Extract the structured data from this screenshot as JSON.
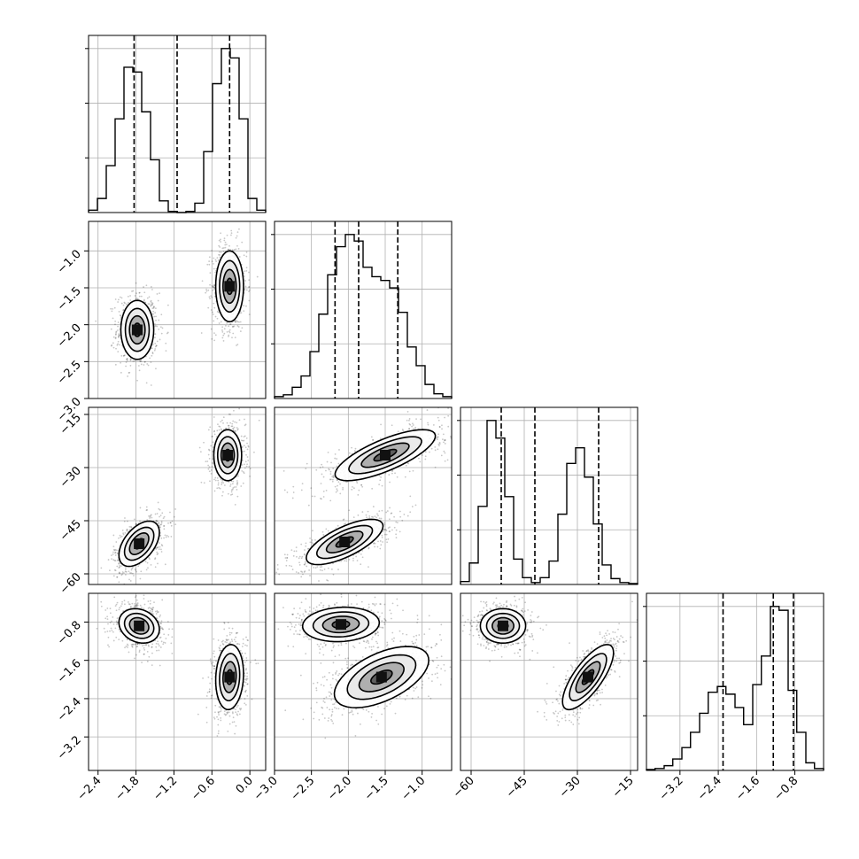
{
  "chart_data": {
    "type": "corner",
    "title": "",
    "parameters": [
      {
        "range": [
          -2.55,
          0.25
        ],
        "ticks": [
          -2.4,
          -1.8,
          -1.2,
          -0.6,
          0.0
        ],
        "tick_labels": [
          "−2.4",
          "−1.8",
          "−1.2",
          "−0.6",
          "0.0"
        ]
      },
      {
        "range": [
          -3.0,
          -0.6
        ],
        "ticks": [
          -3.0,
          -2.5,
          -2.0,
          -1.5,
          -1.0
        ],
        "tick_labels": [
          "−3.0",
          "−2.5",
          "−2.0",
          "−1.5",
          "−1.0"
        ]
      },
      {
        "range": [
          -63,
          -13
        ],
        "ticks": [
          -60,
          -45,
          -30,
          -15
        ],
        "tick_labels": [
          "−60",
          "−45",
          "−30",
          "−15"
        ]
      },
      {
        "range": [
          -3.9,
          -0.2
        ],
        "ticks": [
          -3.2,
          -2.4,
          -1.6,
          -0.8
        ],
        "tick_labels": [
          "−3.2",
          "−2.4",
          "−1.6",
          "−0.8"
        ]
      }
    ],
    "diagonal_histograms": [
      {
        "bins": [
          -2.55,
          -2.41,
          -2.27,
          -2.13,
          -1.99,
          -1.85,
          -1.71,
          -1.57,
          -1.43,
          -1.29,
          -1.15,
          -1.01,
          -0.87,
          -0.73,
          -0.59,
          -0.45,
          -0.31,
          -0.17,
          -0.03,
          0.11,
          0.25
        ],
        "counts": [
          2,
          12,
          40,
          80,
          124,
          120,
          86,
          45,
          10,
          1,
          0,
          1,
          8,
          52,
          110,
          140,
          132,
          80,
          12,
          2
        ],
        "quantiles": [
          -1.83,
          -1.15,
          -0.32
        ]
      },
      {
        "bins": [
          -3.0,
          -2.88,
          -2.76,
          -2.64,
          -2.52,
          -2.4,
          -2.28,
          -2.16,
          -2.04,
          -1.92,
          -1.8,
          -1.68,
          -1.56,
          -1.44,
          -1.32,
          -1.2,
          -1.08,
          -0.96,
          -0.84,
          -0.72,
          -0.6
        ],
        "counts": [
          2,
          4,
          12,
          24,
          50,
          90,
          132,
          162,
          175,
          168,
          140,
          130,
          126,
          118,
          92,
          55,
          35,
          15,
          5,
          2
        ],
        "quantiles": [
          -2.18,
          -1.86,
          -1.33
        ]
      },
      {
        "bins": [
          -63,
          -60.5,
          -58,
          -55.5,
          -53,
          -50.5,
          -48,
          -45.5,
          -43,
          -40.5,
          -38,
          -35.5,
          -33,
          -30.5,
          -28,
          -25.5,
          -23,
          -20.5,
          -18,
          -15.5,
          -13
        ],
        "counts": [
          3,
          22,
          80,
          168,
          150,
          90,
          26,
          7,
          2,
          7,
          24,
          72,
          124,
          140,
          110,
          62,
          20,
          6,
          2,
          1
        ],
        "quantiles": [
          -51.5,
          -42.0,
          -24.0
        ]
      },
      {
        "bins": [
          -3.9,
          -3.72,
          -3.53,
          -3.35,
          -3.16,
          -2.98,
          -2.79,
          -2.61,
          -2.42,
          -2.24,
          -2.05,
          -1.87,
          -1.68,
          -1.5,
          -1.31,
          -1.13,
          -0.94,
          -0.76,
          -0.57,
          -0.39,
          -0.2
        ],
        "counts": [
          1,
          2,
          5,
          12,
          24,
          40,
          60,
          82,
          88,
          80,
          66,
          48,
          90,
          120,
          172,
          168,
          84,
          40,
          8,
          2
        ],
        "quantiles": [
          -2.3,
          -1.25,
          -0.83
        ]
      }
    ],
    "scatter_panels": [
      {
        "x_param": 0,
        "y_param": 1,
        "clusters": [
          {
            "cx": -1.78,
            "cy": -2.07,
            "sx": 0.13,
            "sy": 0.2,
            "rho": 0.0
          },
          {
            "cx": -0.32,
            "cy": -1.48,
            "sx": 0.11,
            "sy": 0.24,
            "rho": 0.0
          }
        ]
      },
      {
        "x_param": 0,
        "y_param": 2,
        "clusters": [
          {
            "cx": -1.75,
            "cy": -51.5,
            "sx": 0.16,
            "sy": 3.2,
            "rho": 0.5
          },
          {
            "cx": -0.35,
            "cy": -26.5,
            "sx": 0.11,
            "sy": 3.6,
            "rho": 0.0
          }
        ]
      },
      {
        "x_param": 0,
        "y_param": 3,
        "clusters": [
          {
            "cx": -1.75,
            "cy": -0.88,
            "sx": 0.16,
            "sy": 0.18,
            "rho": -0.2
          },
          {
            "cx": -0.32,
            "cy": -1.95,
            "sx": 0.11,
            "sy": 0.34,
            "rho": 0.1
          }
        ]
      },
      {
        "x_param": 1,
        "y_param": 2,
        "clusters": [
          {
            "cx": -1.5,
            "cy": -26.5,
            "sx": 0.34,
            "sy": 3.6,
            "rho": 0.75
          },
          {
            "cx": -2.05,
            "cy": -51.0,
            "sx": 0.26,
            "sy": 3.2,
            "rho": 0.7
          }
        ]
      },
      {
        "x_param": 1,
        "y_param": 3,
        "clusters": [
          {
            "cx": -2.1,
            "cy": -0.85,
            "sx": 0.26,
            "sy": 0.18,
            "rho": 0.1
          },
          {
            "cx": -1.55,
            "cy": -1.95,
            "sx": 0.32,
            "sy": 0.32,
            "rho": 0.55
          }
        ]
      },
      {
        "x_param": 2,
        "y_param": 3,
        "clusters": [
          {
            "cx": -51.0,
            "cy": -0.88,
            "sx": 3.2,
            "sy": 0.18,
            "rho": 0.0
          },
          {
            "cx": -27.0,
            "cy": -1.95,
            "sx": 3.6,
            "sy": 0.34,
            "rho": 0.75
          }
        ]
      }
    ],
    "grid": true
  }
}
